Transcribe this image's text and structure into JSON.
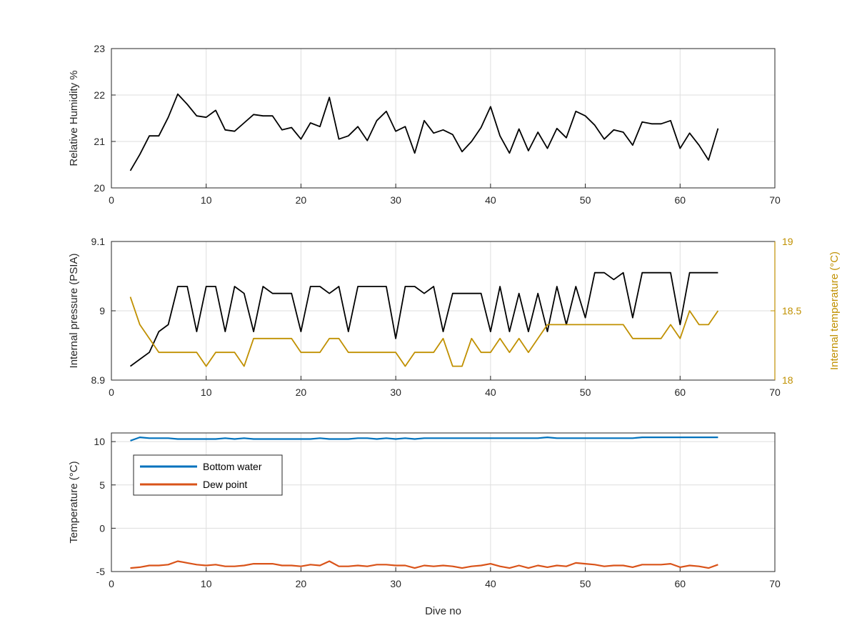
{
  "chart_data": [
    {
      "type": "line",
      "title": "",
      "xlabel": "",
      "ylabel": "Relative Humidity %",
      "xlim": [
        0,
        70
      ],
      "ylim": [
        20,
        23
      ],
      "xticks": [
        "0",
        "10",
        "20",
        "30",
        "40",
        "50",
        "60",
        "70"
      ],
      "yticks": [
        "20",
        "21",
        "22",
        "23"
      ],
      "grid": true,
      "x": [
        2,
        3,
        4,
        5,
        6,
        7,
        8,
        9,
        10,
        11,
        12,
        13,
        14,
        15,
        16,
        17,
        18,
        19,
        20,
        21,
        22,
        23,
        24,
        25,
        26,
        27,
        28,
        29,
        30,
        31,
        32,
        33,
        34,
        35,
        36,
        37,
        38,
        39,
        40,
        41,
        42,
        43,
        44,
        45,
        46,
        47,
        48,
        49,
        50,
        51,
        52,
        53,
        54,
        55,
        56,
        57,
        58,
        59,
        60,
        61,
        62,
        63,
        64
      ],
      "series": [
        {
          "color": "#000000",
          "values": [
            20.37,
            20.72,
            21.12,
            21.12,
            21.52,
            22.02,
            21.8,
            21.55,
            21.52,
            21.67,
            21.25,
            21.22,
            21.4,
            21.58,
            21.55,
            21.55,
            21.25,
            21.3,
            21.05,
            21.4,
            21.32,
            21.95,
            21.05,
            21.12,
            21.32,
            21.02,
            21.45,
            21.65,
            21.22,
            21.32,
            20.75,
            21.45,
            21.18,
            21.25,
            21.15,
            20.78,
            21.0,
            21.3,
            21.75,
            21.12,
            20.75,
            21.27,
            20.8,
            21.2,
            20.85,
            21.28,
            21.08,
            21.65,
            21.55,
            21.35,
            21.05,
            21.25,
            21.2,
            20.92,
            21.42,
            21.38,
            21.38,
            21.45,
            20.85,
            21.18,
            20.92,
            20.6,
            21.28
          ]
        }
      ]
    },
    {
      "type": "line",
      "title": "",
      "xlabel": "",
      "ylabel": "Internal pressure (PSIA)",
      "ylabel_right": "Internal temperature (°C)",
      "xlim": [
        0,
        70
      ],
      "ylim": [
        8.9,
        9.1
      ],
      "ylim_right": [
        18,
        19
      ],
      "xticks": [
        "0",
        "10",
        "20",
        "30",
        "40",
        "50",
        "60",
        "70"
      ],
      "yticks": [
        "8.9",
        "9",
        "9.1"
      ],
      "yticks_right": [
        "18",
        "18.5",
        "19"
      ],
      "grid": true,
      "x": [
        2,
        3,
        4,
        5,
        6,
        7,
        8,
        9,
        10,
        11,
        12,
        13,
        14,
        15,
        16,
        17,
        18,
        19,
        20,
        21,
        22,
        23,
        24,
        25,
        26,
        27,
        28,
        29,
        30,
        31,
        32,
        33,
        34,
        35,
        36,
        37,
        38,
        39,
        40,
        41,
        42,
        43,
        44,
        45,
        46,
        47,
        48,
        49,
        50,
        51,
        52,
        53,
        54,
        55,
        56,
        57,
        58,
        59,
        60,
        61,
        62,
        63,
        64
      ],
      "series": [
        {
          "axis": "left",
          "color": "#000000",
          "values": [
            8.92,
            8.93,
            8.94,
            8.97,
            8.98,
            9.035,
            9.035,
            8.97,
            9.035,
            9.035,
            8.97,
            9.035,
            9.025,
            8.97,
            9.035,
            9.025,
            9.025,
            9.025,
            8.97,
            9.035,
            9.035,
            9.025,
            9.035,
            8.97,
            9.035,
            9.035,
            9.035,
            9.035,
            8.96,
            9.035,
            9.035,
            9.025,
            9.035,
            8.97,
            9.025,
            9.025,
            9.025,
            9.025,
            8.97,
            9.035,
            8.97,
            9.025,
            8.97,
            9.025,
            8.97,
            9.035,
            8.98,
            9.035,
            8.99,
            9.055,
            9.055,
            9.045,
            9.055,
            8.99,
            9.055,
            9.055,
            9.055,
            9.055,
            8.98,
            9.055,
            9.055,
            9.055,
            9.055
          ]
        },
        {
          "axis": "right",
          "color": "#C09000",
          "values": [
            18.6,
            18.4,
            18.3,
            18.2,
            18.2,
            18.2,
            18.2,
            18.2,
            18.1,
            18.2,
            18.2,
            18.2,
            18.1,
            18.3,
            18.3,
            18.3,
            18.3,
            18.3,
            18.2,
            18.2,
            18.2,
            18.3,
            18.3,
            18.2,
            18.2,
            18.2,
            18.2,
            18.2,
            18.2,
            18.1,
            18.2,
            18.2,
            18.2,
            18.3,
            18.1,
            18.1,
            18.3,
            18.2,
            18.2,
            18.3,
            18.2,
            18.3,
            18.2,
            18.3,
            18.4,
            18.4,
            18.4,
            18.4,
            18.4,
            18.4,
            18.4,
            18.4,
            18.4,
            18.3,
            18.3,
            18.3,
            18.3,
            18.4,
            18.3,
            18.5,
            18.4,
            18.4,
            18.5
          ]
        }
      ]
    },
    {
      "type": "line",
      "title": "",
      "xlabel": "Dive no",
      "ylabel": "Temperature (°C)",
      "xlim": [
        0,
        70
      ],
      "ylim": [
        -5,
        11
      ],
      "xticks": [
        "0",
        "10",
        "20",
        "30",
        "40",
        "50",
        "60",
        "70"
      ],
      "yticks": [
        "-5",
        "0",
        "5",
        "10"
      ],
      "grid": true,
      "legend_position": "upper-left",
      "x": [
        2,
        3,
        4,
        5,
        6,
        7,
        8,
        9,
        10,
        11,
        12,
        13,
        14,
        15,
        16,
        17,
        18,
        19,
        20,
        21,
        22,
        23,
        24,
        25,
        26,
        27,
        28,
        29,
        30,
        31,
        32,
        33,
        34,
        35,
        36,
        37,
        38,
        39,
        40,
        41,
        42,
        43,
        44,
        45,
        46,
        47,
        48,
        49,
        50,
        51,
        52,
        53,
        54,
        55,
        56,
        57,
        58,
        59,
        60,
        61,
        62,
        63,
        64
      ],
      "series": [
        {
          "name": "Bottom water",
          "color": "#0072BD",
          "values": [
            10.1,
            10.5,
            10.4,
            10.4,
            10.4,
            10.3,
            10.3,
            10.3,
            10.3,
            10.3,
            10.4,
            10.3,
            10.4,
            10.3,
            10.3,
            10.3,
            10.3,
            10.3,
            10.3,
            10.3,
            10.4,
            10.3,
            10.3,
            10.3,
            10.4,
            10.4,
            10.3,
            10.4,
            10.3,
            10.4,
            10.3,
            10.4,
            10.4,
            10.4,
            10.4,
            10.4,
            10.4,
            10.4,
            10.4,
            10.4,
            10.4,
            10.4,
            10.4,
            10.4,
            10.5,
            10.4,
            10.4,
            10.4,
            10.4,
            10.4,
            10.4,
            10.4,
            10.4,
            10.4,
            10.5,
            10.5,
            10.5,
            10.5,
            10.5,
            10.5,
            10.5,
            10.5,
            10.5
          ]
        },
        {
          "name": "Dew point",
          "color": "#D95319",
          "values": [
            -4.6,
            -4.5,
            -4.3,
            -4.3,
            -4.2,
            -3.8,
            -4.0,
            -4.2,
            -4.3,
            -4.2,
            -4.4,
            -4.4,
            -4.3,
            -4.1,
            -4.1,
            -4.1,
            -4.3,
            -4.3,
            -4.4,
            -4.2,
            -4.3,
            -3.8,
            -4.4,
            -4.4,
            -4.3,
            -4.4,
            -4.2,
            -4.2,
            -4.3,
            -4.3,
            -4.6,
            -4.3,
            -4.4,
            -4.3,
            -4.4,
            -4.6,
            -4.4,
            -4.3,
            -4.1,
            -4.4,
            -4.6,
            -4.3,
            -4.6,
            -4.3,
            -4.5,
            -4.3,
            -4.4,
            -4.0,
            -4.1,
            -4.2,
            -4.4,
            -4.3,
            -4.3,
            -4.5,
            -4.2,
            -4.2,
            -4.2,
            -4.1,
            -4.5,
            -4.3,
            -4.4,
            -4.6,
            -4.2
          ]
        }
      ]
    }
  ]
}
